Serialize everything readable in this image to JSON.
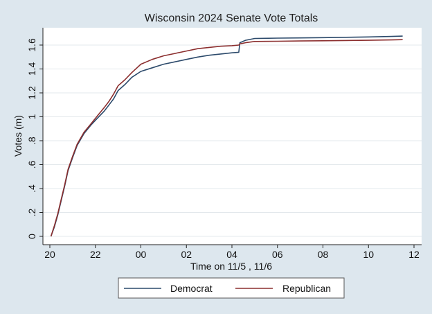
{
  "chart_data": {
    "type": "line",
    "title": "Wisconsin 2024 Senate Vote Totals",
    "xlabel": "Time on 11/5 , 11/6",
    "ylabel": "Votes (m)",
    "xlim": [
      20,
      36
    ],
    "ylim": [
      0,
      1.72
    ],
    "x_ticks": [
      20,
      22,
      24,
      26,
      28,
      30,
      32,
      34,
      36
    ],
    "x_tick_labels": [
      "20",
      "22",
      "00",
      "02",
      "04",
      "06",
      "08",
      "10",
      "12"
    ],
    "y_ticks": [
      0,
      0.2,
      0.4,
      0.6,
      0.8,
      1.0,
      1.2,
      1.4,
      1.6
    ],
    "y_tick_labels": [
      "0",
      ".2",
      ".4",
      ".6",
      ".8",
      "1",
      "1.2",
      "1.4",
      "1.6"
    ],
    "grid": true,
    "legend_position": "bottom",
    "series": [
      {
        "name": "Democrat",
        "color": "#2c4a6b",
        "x": [
          20.05,
          20.2,
          20.35,
          20.5,
          20.65,
          20.8,
          21.0,
          21.2,
          21.5,
          21.8,
          22.1,
          22.4,
          22.6,
          22.8,
          23.0,
          23.3,
          23.6,
          24.0,
          24.5,
          25.0,
          25.5,
          26.0,
          26.5,
          27.0,
          27.5,
          28.0,
          28.3,
          28.35,
          28.6,
          29.0,
          30.0,
          31.0,
          32.0,
          33.0,
          34.0,
          35.0,
          35.5
        ],
        "y": [
          0.0,
          0.08,
          0.18,
          0.3,
          0.42,
          0.55,
          0.66,
          0.76,
          0.86,
          0.93,
          0.99,
          1.05,
          1.1,
          1.15,
          1.22,
          1.27,
          1.33,
          1.38,
          1.41,
          1.44,
          1.46,
          1.48,
          1.5,
          1.515,
          1.525,
          1.535,
          1.54,
          1.62,
          1.64,
          1.655,
          1.658,
          1.66,
          1.662,
          1.665,
          1.668,
          1.672,
          1.675
        ]
      },
      {
        "name": "Republican",
        "color": "#8b2e2e",
        "x": [
          20.05,
          20.2,
          20.35,
          20.5,
          20.65,
          20.8,
          21.0,
          21.2,
          21.5,
          21.8,
          22.1,
          22.4,
          22.6,
          22.8,
          23.0,
          23.3,
          23.6,
          24.0,
          24.5,
          25.0,
          25.5,
          26.0,
          26.5,
          27.0,
          27.5,
          28.0,
          28.3,
          28.35,
          28.6,
          29.0,
          30.0,
          31.0,
          32.0,
          33.0,
          34.0,
          35.0,
          35.5
        ],
        "y": [
          0.0,
          0.09,
          0.19,
          0.31,
          0.43,
          0.56,
          0.67,
          0.77,
          0.87,
          0.94,
          1.01,
          1.08,
          1.13,
          1.19,
          1.26,
          1.31,
          1.37,
          1.44,
          1.48,
          1.51,
          1.53,
          1.55,
          1.57,
          1.58,
          1.59,
          1.595,
          1.6,
          1.61,
          1.62,
          1.63,
          1.632,
          1.634,
          1.636,
          1.638,
          1.64,
          1.643,
          1.645
        ]
      }
    ]
  }
}
